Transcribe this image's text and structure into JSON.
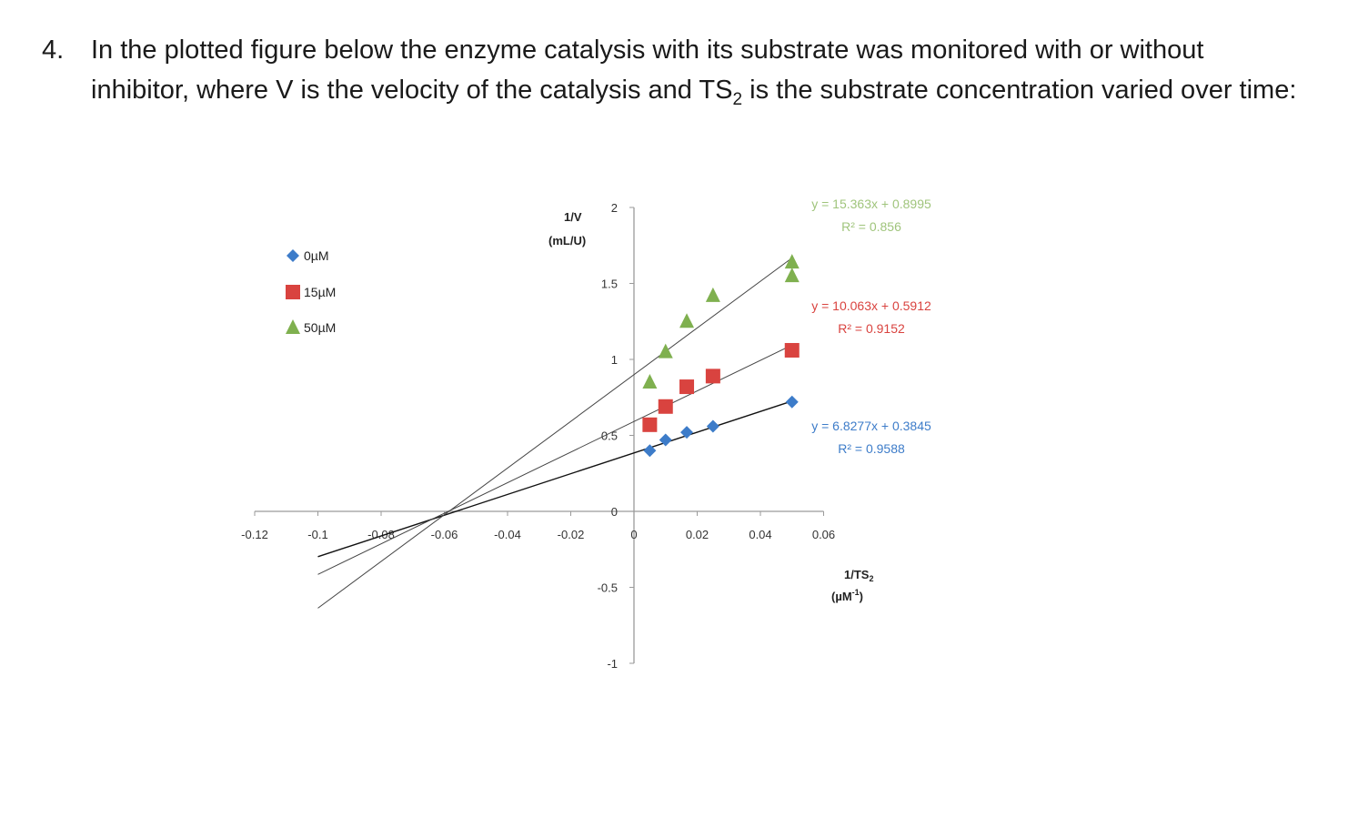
{
  "question": {
    "number": "4.",
    "text_before": "In the plotted figure below the enzyme catalysis with its substrate was monitored with or without inhibitor, where V is the velocity of the catalysis and TS",
    "subscript": "2",
    "text_after": " is the substrate concentration varied over time:"
  },
  "chart_data": {
    "type": "scatter",
    "title": "",
    "xlabel_line1": "1/TS",
    "xlabel_sub": "2",
    "xlabel_line2": "(µM",
    "xlabel_sup": "-1",
    "xlabel_close": ")",
    "ylabel_line1": "1/V",
    "ylabel_line2": "(mL/U)",
    "xlim": [
      -0.12,
      0.06
    ],
    "ylim": [
      -1,
      2
    ],
    "x_ticks": [
      "-0.12",
      "-0.1",
      "-0.08",
      "-0.06",
      "-0.04",
      "-0.02",
      "0",
      "0.02",
      "0.04",
      "0.06"
    ],
    "y_ticks": [
      "-1",
      "-0.5",
      "0",
      "0.5",
      "1",
      "1.5",
      "2"
    ],
    "legend_position": "top-left",
    "grid": false,
    "series": [
      {
        "name": "0µM",
        "color": "#3d7cc9",
        "marker": "diamond",
        "x": [
          0.005,
          0.01,
          0.0167,
          0.025,
          0.05
        ],
        "y": [
          0.4,
          0.47,
          0.52,
          0.56,
          0.72
        ],
        "fit": {
          "slope": 6.8277,
          "intercept": 0.3845,
          "x_from": -0.1,
          "x_to": 0.05
        },
        "equation": "y = 6.8277x + 0.3845",
        "r2": "R² = 0.9588"
      },
      {
        "name": "15µM",
        "color": "#d9433f",
        "marker": "square",
        "x": [
          0.005,
          0.01,
          0.0167,
          0.025,
          0.05
        ],
        "y": [
          0.57,
          0.69,
          0.82,
          0.89,
          1.06
        ],
        "fit": {
          "slope": 10.063,
          "intercept": 0.5912,
          "x_from": -0.1,
          "x_to": 0.05
        },
        "equation": "y = 10.063x + 0.5912",
        "r2": "R² = 0.9152"
      },
      {
        "name": "50µM",
        "color": "#7fb04f",
        "marker": "triangle",
        "x": [
          0.005,
          0.01,
          0.0167,
          0.025,
          0.05,
          0.05
        ],
        "y": [
          0.85,
          1.05,
          1.25,
          1.42,
          1.55,
          1.64
        ],
        "fit": {
          "slope": 15.363,
          "intercept": 0.8995,
          "x_from": -0.1,
          "x_to": 0.05
        },
        "equation": "y = 15.363x + 0.8995",
        "r2": "R² = 0.856"
      }
    ]
  }
}
